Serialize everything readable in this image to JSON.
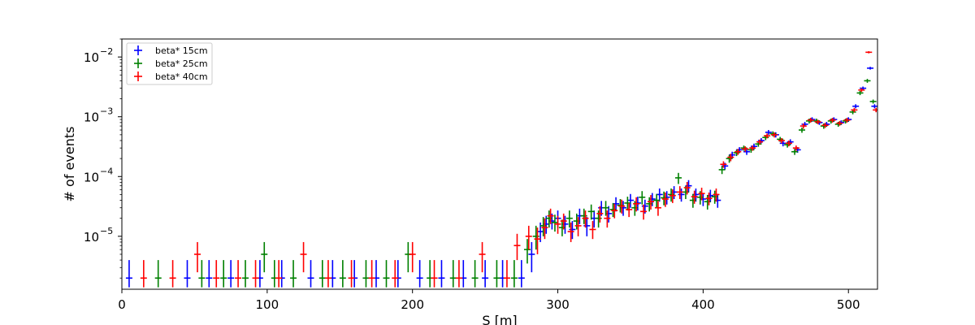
{
  "chart_data": {
    "type": "scatter",
    "title": "",
    "xlabel": "S [m]",
    "ylabel": "# of events",
    "xlim": [
      0,
      520
    ],
    "ylim": [
      1.3e-06,
      0.02
    ],
    "yscale": "log",
    "grid": false,
    "legend_position": "top-left",
    "x_ticks": [
      {
        "value": 0,
        "label": "0"
      },
      {
        "value": 100,
        "label": "100"
      },
      {
        "value": 200,
        "label": "200"
      },
      {
        "value": 300,
        "label": "300"
      },
      {
        "value": 400,
        "label": "400"
      },
      {
        "value": 500,
        "label": "500"
      }
    ],
    "y_ticks": [
      {
        "value": 1e-05,
        "base": "10",
        "exp": "−5"
      },
      {
        "value": 0.0001,
        "base": "10",
        "exp": "−4"
      },
      {
        "value": 0.001,
        "base": "10",
        "exp": "−3"
      },
      {
        "value": 0.01,
        "base": "10",
        "exp": "−2"
      }
    ],
    "series": [
      {
        "name": "beta* 15cm",
        "color": "#0000ff",
        "x": [
          5,
          45,
          60,
          75,
          95,
          110,
          130,
          145,
          160,
          175,
          190,
          205,
          220,
          235,
          250,
          262,
          275,
          282,
          288,
          292,
          296,
          300,
          305,
          310,
          315,
          320,
          325,
          330,
          335,
          340,
          345,
          350,
          355,
          360,
          365,
          370,
          375,
          380,
          385,
          390,
          395,
          400,
          405,
          410,
          415,
          420,
          425,
          430,
          435,
          440,
          445,
          450,
          455,
          460,
          465,
          470,
          475,
          480,
          485,
          490,
          495,
          500,
          505,
          510,
          515,
          518
        ],
        "y": [
          2e-06,
          2e-06,
          2e-06,
          2e-06,
          2e-06,
          2e-06,
          2e-06,
          2e-06,
          2e-06,
          2e-06,
          2e-06,
          2e-06,
          2e-06,
          2e-06,
          2e-06,
          2e-06,
          2e-06,
          5e-06,
          1.2e-05,
          1.6e-05,
          1.8e-05,
          2e-05,
          1.6e-05,
          1.3e-05,
          2.2e-05,
          1.5e-05,
          2e-05,
          3e-05,
          2.4e-05,
          3.5e-05,
          3e-05,
          4e-05,
          3.6e-05,
          3.2e-05,
          4.2e-05,
          5e-05,
          4.5e-05,
          5.5e-05,
          5e-05,
          7e-05,
          5e-05,
          4.2e-05,
          4.8e-05,
          4e-05,
          0.00015,
          0.00023,
          0.00028,
          0.00026,
          0.00032,
          0.0004,
          0.00055,
          0.0005,
          0.00036,
          0.00038,
          0.00028,
          0.00075,
          0.0009,
          0.0008,
          0.00075,
          0.0009,
          0.0008,
          0.0009,
          0.0015,
          0.003,
          0.0065,
          0.0015
        ],
        "yerr_lo": [
          6e-07,
          6e-07,
          6e-07,
          6e-07,
          6e-07,
          6e-07,
          6e-07,
          6e-07,
          6e-07,
          6e-07,
          6e-07,
          6e-07,
          6e-07,
          6e-07,
          6e-07,
          6e-07,
          6e-07,
          2.5e-06,
          4e-06,
          5e-06,
          5e-06,
          6e-06,
          5e-06,
          4e-06,
          6e-06,
          5e-06,
          6e-06,
          8e-06,
          7e-06,
          9e-06,
          8e-06,
          1e-05,
          9e-06,
          8e-06,
          1e-05,
          1.2e-05,
          1.1e-05,
          1.3e-05,
          1.2e-05,
          1.6e-05,
          1.2e-05,
          1e-05,
          1.1e-05,
          1e-05,
          2e-05,
          3e-05,
          3e-05,
          3e-05,
          3.5e-05,
          4e-05,
          5e-05,
          5e-05,
          4e-05,
          4e-05,
          3e-05,
          7e-05,
          8e-05,
          7e-05,
          7e-05,
          8e-05,
          7e-05,
          8e-05,
          0.00012,
          0.0002,
          0.00035,
          0.00012
        ],
        "yerr_hi": [
          2e-06,
          2e-06,
          2e-06,
          2e-06,
          2e-06,
          2e-06,
          2e-06,
          2e-06,
          2e-06,
          2e-06,
          2e-06,
          2e-06,
          2e-06,
          2e-06,
          2e-06,
          2e-06,
          2e-06,
          3e-06,
          5e-06,
          6e-06,
          6e-06,
          7e-06,
          6e-06,
          5e-06,
          7e-06,
          6e-06,
          7e-06,
          9e-06,
          8e-06,
          1e-05,
          9e-06,
          1.1e-05,
          1e-05,
          9e-06,
          1.1e-05,
          1.3e-05,
          1.2e-05,
          1.4e-05,
          1.3e-05,
          1.7e-05,
          1.3e-05,
          1.1e-05,
          1.2e-05,
          1.1e-05,
          2e-05,
          3e-05,
          3e-05,
          3e-05,
          3.5e-05,
          4e-05,
          5e-05,
          5e-05,
          4e-05,
          4e-05,
          3e-05,
          7e-05,
          8e-05,
          7e-05,
          7e-05,
          8e-05,
          7e-05,
          8e-05,
          0.00012,
          0.0002,
          0.00035,
          0.00012
        ]
      },
      {
        "name": "beta* 25cm",
        "color": "#008000",
        "x": [
          25,
          55,
          70,
          85,
          98,
          105,
          118,
          138,
          152,
          168,
          182,
          197,
          212,
          228,
          243,
          258,
          270,
          279,
          285,
          290,
          294,
          298,
          303,
          308,
          313,
          318,
          323,
          328,
          333,
          338,
          343,
          348,
          353,
          358,
          363,
          368,
          373,
          378,
          383,
          388,
          393,
          398,
          403,
          408,
          413,
          418,
          423,
          428,
          433,
          438,
          443,
          448,
          453,
          458,
          463,
          468,
          473,
          478,
          483,
          488,
          493,
          498,
          503,
          508,
          513,
          517
        ],
        "y": [
          2e-06,
          2e-06,
          2e-06,
          2e-06,
          5e-06,
          2e-06,
          2e-06,
          2e-06,
          2e-06,
          2e-06,
          2e-06,
          5e-06,
          2e-06,
          2e-06,
          2e-06,
          2e-06,
          2e-06,
          6e-06,
          1e-05,
          1.5e-05,
          2e-05,
          1.7e-05,
          1.4e-05,
          2e-05,
          1.8e-05,
          2.2e-05,
          2.6e-05,
          2e-05,
          3e-05,
          2.8e-05,
          3.3e-05,
          3.6e-05,
          3e-05,
          4.5e-05,
          3.5e-05,
          4e-05,
          4.4e-05,
          5e-05,
          9.5e-05,
          5.5e-05,
          4e-05,
          4.5e-05,
          3.8e-05,
          4.6e-05,
          0.00013,
          0.0002,
          0.00025,
          0.0003,
          0.00028,
          0.00035,
          0.00045,
          0.00052,
          0.00042,
          0.00034,
          0.00026,
          0.0006,
          0.00085,
          0.00085,
          0.0007,
          0.00085,
          0.00075,
          0.00085,
          0.0012,
          0.0025,
          0.004,
          0.0018
        ],
        "yerr_lo": [
          6e-07,
          6e-07,
          6e-07,
          6e-07,
          2.5e-06,
          6e-07,
          6e-07,
          6e-07,
          6e-07,
          6e-07,
          6e-07,
          2.5e-06,
          6e-07,
          6e-07,
          6e-07,
          6e-07,
          6e-07,
          2.5e-06,
          4e-06,
          5e-06,
          6e-06,
          5e-06,
          4e-06,
          6e-06,
          5e-06,
          6e-06,
          7e-06,
          6e-06,
          8e-06,
          7e-06,
          8e-06,
          9e-06,
          8e-06,
          1.1e-05,
          9e-06,
          1e-05,
          1.1e-05,
          1.2e-05,
          2e-05,
          1.3e-05,
          1e-05,
          1.1e-05,
          1e-05,
          1.1e-05,
          2e-05,
          3e-05,
          3e-05,
          3e-05,
          3e-05,
          3.5e-05,
          4.5e-05,
          5e-05,
          4e-05,
          3.5e-05,
          3e-05,
          6e-05,
          8e-05,
          8e-05,
          7e-05,
          8e-05,
          7e-05,
          8e-05,
          0.0001,
          0.0002,
          0.0003,
          0.00014
        ],
        "yerr_hi": [
          2e-06,
          2e-06,
          2e-06,
          2e-06,
          3e-06,
          2e-06,
          2e-06,
          2e-06,
          2e-06,
          2e-06,
          2e-06,
          3e-06,
          2e-06,
          2e-06,
          2e-06,
          2e-06,
          2e-06,
          3e-06,
          5e-06,
          6e-06,
          7e-06,
          6e-06,
          5e-06,
          7e-06,
          6e-06,
          7e-06,
          8e-06,
          7e-06,
          9e-06,
          8e-06,
          9e-06,
          1e-05,
          9e-06,
          1.2e-05,
          1e-05,
          1.1e-05,
          1.2e-05,
          1.3e-05,
          2e-05,
          1.4e-05,
          1.1e-05,
          1.2e-05,
          1.1e-05,
          1.2e-05,
          2e-05,
          3e-05,
          3e-05,
          3e-05,
          3e-05,
          3.5e-05,
          4.5e-05,
          5e-05,
          4e-05,
          3.5e-05,
          3e-05,
          6e-05,
          8e-05,
          8e-05,
          7e-05,
          8e-05,
          7e-05,
          8e-05,
          0.0001,
          0.0002,
          0.0003,
          0.00014
        ]
      },
      {
        "name": "beta* 40cm",
        "color": "#ff0000",
        "x": [
          15,
          35,
          52,
          65,
          80,
          92,
          108,
          125,
          142,
          158,
          172,
          188,
          200,
          215,
          232,
          248,
          265,
          272,
          280,
          286,
          291,
          295,
          300,
          304,
          309,
          314,
          319,
          324,
          329,
          334,
          339,
          344,
          349,
          354,
          359,
          364,
          369,
          374,
          379,
          384,
          389,
          394,
          399,
          404,
          409,
          414,
          419,
          424,
          429,
          434,
          439,
          444,
          449,
          454,
          459,
          464,
          469,
          474,
          479,
          484,
          489,
          494,
          499,
          504,
          509,
          514,
          519
        ],
        "y": [
          2e-06,
          2e-06,
          5e-06,
          2e-06,
          2e-06,
          2e-06,
          2e-06,
          5e-06,
          2e-06,
          2e-06,
          2e-06,
          2e-06,
          5e-06,
          2e-06,
          2e-06,
          5e-06,
          2e-06,
          7e-06,
          1e-05,
          9e-06,
          1.4e-05,
          2.2e-05,
          1.6e-05,
          1.8e-05,
          1.2e-05,
          1.5e-05,
          2e-05,
          1.3e-05,
          2.4e-05,
          2e-05,
          2.7e-05,
          3.2e-05,
          2.8e-05,
          3.5e-05,
          2.6e-05,
          3.8e-05,
          3e-05,
          4.2e-05,
          4.8e-05,
          5.5e-05,
          6.5e-05,
          4.6e-05,
          5.2e-05,
          4.3e-05,
          5e-05,
          0.00016,
          0.00021,
          0.00026,
          0.00029,
          0.0003,
          0.00038,
          0.00048,
          0.0005,
          0.0004,
          0.00036,
          0.0003,
          0.0007,
          0.00088,
          0.00082,
          0.00072,
          0.00088,
          0.00078,
          0.00088,
          0.0013,
          0.0028,
          0.012,
          0.0013
        ],
        "yerr_lo": [
          6e-07,
          6e-07,
          2.5e-06,
          6e-07,
          6e-07,
          6e-07,
          6e-07,
          2.5e-06,
          6e-07,
          6e-07,
          6e-07,
          6e-07,
          2.5e-06,
          6e-07,
          6e-07,
          2.5e-06,
          6e-07,
          3e-06,
          4e-06,
          4e-06,
          5e-06,
          6e-06,
          5e-06,
          5e-06,
          4e-06,
          5e-06,
          6e-06,
          4e-06,
          7e-06,
          6e-06,
          7e-06,
          8e-06,
          7e-06,
          9e-06,
          7e-06,
          1e-05,
          8e-06,
          1.1e-05,
          1.2e-05,
          1.3e-05,
          1.5e-05,
          1.1e-05,
          1.2e-05,
          1e-05,
          1.2e-05,
          2e-05,
          3e-05,
          3e-05,
          3e-05,
          3e-05,
          3.5e-05,
          4.5e-05,
          5e-05,
          4e-05,
          4e-05,
          3e-05,
          7e-05,
          8e-05,
          7e-05,
          7e-05,
          8e-05,
          7e-05,
          8e-05,
          0.00011,
          0.0002,
          0.0005,
          0.00011
        ],
        "yerr_hi": [
          2e-06,
          2e-06,
          3e-06,
          2e-06,
          2e-06,
          2e-06,
          2e-06,
          3e-06,
          2e-06,
          2e-06,
          2e-06,
          2e-06,
          3e-06,
          2e-06,
          2e-06,
          3e-06,
          2e-06,
          4e-06,
          5e-06,
          5e-06,
          6e-06,
          7e-06,
          6e-06,
          6e-06,
          5e-06,
          6e-06,
          7e-06,
          5e-06,
          8e-06,
          7e-06,
          8e-06,
          9e-06,
          8e-06,
          1e-05,
          8e-06,
          1.1e-05,
          9e-06,
          1.2e-05,
          1.3e-05,
          1.4e-05,
          1.6e-05,
          1.2e-05,
          1.3e-05,
          1.1e-05,
          1.3e-05,
          2e-05,
          3e-05,
          3e-05,
          3e-05,
          3e-05,
          3.5e-05,
          4.5e-05,
          5e-05,
          4e-05,
          4e-05,
          3e-05,
          7e-05,
          8e-05,
          7e-05,
          7e-05,
          8e-05,
          7e-05,
          8e-05,
          0.00011,
          0.0002,
          0.0005,
          0.00011
        ]
      }
    ]
  }
}
